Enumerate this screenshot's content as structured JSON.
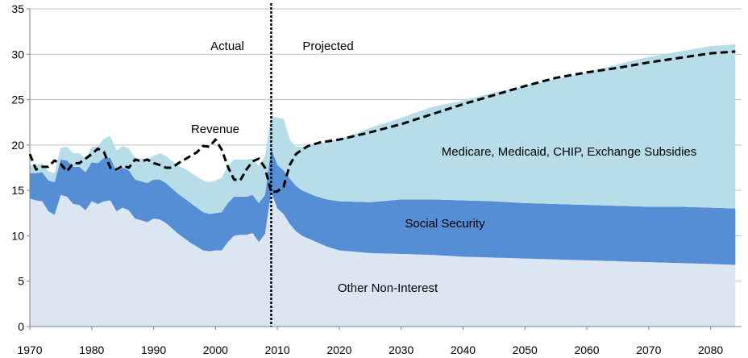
{
  "chart_data": {
    "type": "area",
    "title": "",
    "xlabel": "",
    "ylabel": "",
    "xlim": [
      1970,
      2085
    ],
    "ylim": [
      0,
      35
    ],
    "x_ticks": [
      1970,
      1980,
      1990,
      2000,
      2010,
      2020,
      2030,
      2040,
      2050,
      2060,
      2070,
      2080
    ],
    "y_ticks": [
      0,
      5,
      10,
      15,
      20,
      25,
      30,
      35
    ],
    "grid": "horizontal",
    "stacked": true,
    "divider_x": 2009,
    "annotations": {
      "actual": "Actual",
      "projected": "Projected",
      "revenue": "Revenue",
      "health": "Medicare, Medicaid, CHIP, Exchange Subsidies",
      "social_security": "Social Security",
      "other": "Other Non-Interest"
    },
    "colors": {
      "other": "#dce6f2",
      "social_security": "#558ed5",
      "health": "#b7dde8",
      "revenue": "#000000",
      "grid": "#c0c0c0",
      "divider": "#000000"
    },
    "x": [
      1970,
      1971,
      1972,
      1973,
      1974,
      1975,
      1976,
      1977,
      1978,
      1979,
      1980,
      1981,
      1982,
      1983,
      1984,
      1985,
      1986,
      1987,
      1988,
      1989,
      1990,
      1991,
      1992,
      1993,
      1994,
      1995,
      1996,
      1997,
      1998,
      1999,
      2000,
      2001,
      2002,
      2003,
      2004,
      2005,
      2006,
      2007,
      2008,
      2009,
      2010,
      2011,
      2012,
      2013,
      2014,
      2015,
      2016,
      2017,
      2018,
      2019,
      2020,
      2025,
      2030,
      2035,
      2040,
      2045,
      2050,
      2055,
      2060,
      2065,
      2070,
      2075,
      2080,
      2084
    ],
    "series": [
      {
        "key": "other",
        "values": [
          14.1,
          13.9,
          13.8,
          12.7,
          12.3,
          14.5,
          14.3,
          13.5,
          13.4,
          12.8,
          13.8,
          13.5,
          13.8,
          13.9,
          12.7,
          13.1,
          12.8,
          11.9,
          11.7,
          11.5,
          11.9,
          11.8,
          11.4,
          10.8,
          10.2,
          9.7,
          9.2,
          8.8,
          8.4,
          8.3,
          8.4,
          8.4,
          9.3,
          10.0,
          10.1,
          10.1,
          10.3,
          9.3,
          10.2,
          14.8,
          13.0,
          12.4,
          11.3,
          10.5,
          10.0,
          9.7,
          9.4,
          9.1,
          8.8,
          8.6,
          8.4,
          8.1,
          8.0,
          7.9,
          7.7,
          7.6,
          7.5,
          7.4,
          7.3,
          7.2,
          7.1,
          7.0,
          6.9,
          6.8
        ]
      },
      {
        "key": "social_security",
        "values": [
          2.8,
          3.0,
          3.2,
          3.4,
          3.6,
          3.9,
          4.0,
          4.1,
          4.2,
          4.2,
          4.3,
          4.5,
          4.8,
          4.7,
          4.4,
          4.4,
          4.4,
          4.3,
          4.3,
          4.3,
          4.3,
          4.4,
          4.4,
          4.4,
          4.4,
          4.4,
          4.4,
          4.3,
          4.2,
          4.1,
          4.1,
          4.2,
          4.3,
          4.3,
          4.2,
          4.2,
          4.2,
          4.3,
          4.3,
          4.8,
          4.8,
          4.8,
          5.0,
          5.0,
          5.0,
          5.0,
          5.0,
          5.1,
          5.2,
          5.3,
          5.4,
          5.6,
          6.0,
          6.1,
          6.2,
          6.2,
          6.1,
          6.1,
          6.1,
          6.1,
          6.1,
          6.2,
          6.2,
          6.2
        ]
      },
      {
        "key": "health",
        "values": [
          0.9,
          0.9,
          1.0,
          1.0,
          1.0,
          1.3,
          1.5,
          1.5,
          1.5,
          1.5,
          1.7,
          1.9,
          2.1,
          2.4,
          2.3,
          2.4,
          2.4,
          2.4,
          2.5,
          2.6,
          2.6,
          2.9,
          3.0,
          3.0,
          3.1,
          3.3,
          3.4,
          3.4,
          3.5,
          3.5,
          3.6,
          3.8,
          4.1,
          4.1,
          4.1,
          4.1,
          4.0,
          4.1,
          4.3,
          3.6,
          5.2,
          5.7,
          4.3,
          4.3,
          4.8,
          5.3,
          5.8,
          6.0,
          6.4,
          6.6,
          6.8,
          8.2,
          9.0,
          10.2,
          11.0,
          12.0,
          12.9,
          13.8,
          14.6,
          15.6,
          16.5,
          17.1,
          17.8,
          18.1
        ]
      }
    ],
    "revenue": {
      "name": "Revenue",
      "x": [
        1970,
        1971,
        1972,
        1973,
        1974,
        1975,
        1976,
        1977,
        1978,
        1979,
        1980,
        1981,
        1982,
        1983,
        1984,
        1985,
        1986,
        1987,
        1988,
        1989,
        1990,
        1991,
        1992,
        1993,
        1994,
        1995,
        1996,
        1997,
        1998,
        1999,
        2000,
        2001,
        2002,
        2003,
        2004,
        2005,
        2006,
        2007,
        2008,
        2009,
        2010,
        2011,
        2012,
        2013,
        2014,
        2015,
        2016,
        2017,
        2018,
        2019,
        2020,
        2025,
        2030,
        2035,
        2040,
        2045,
        2050,
        2055,
        2060,
        2065,
        2070,
        2075,
        2080,
        2084
      ],
      "values": [
        19.0,
        17.3,
        17.6,
        17.6,
        18.3,
        17.9,
        17.1,
        18.0,
        18.0,
        18.5,
        19.0,
        19.6,
        19.2,
        17.5,
        17.3,
        17.7,
        17.5,
        18.4,
        18.2,
        18.4,
        18.0,
        17.8,
        17.5,
        17.5,
        18.0,
        18.4,
        18.8,
        19.2,
        19.9,
        19.8,
        20.6,
        19.5,
        17.6,
        16.2,
        16.1,
        17.3,
        18.2,
        18.5,
        17.5,
        14.8,
        14.9,
        15.4,
        17.8,
        19.0,
        19.5,
        19.9,
        20.1,
        20.3,
        20.4,
        20.5,
        20.6,
        21.4,
        22.3,
        23.4,
        24.5,
        25.5,
        26.5,
        27.4,
        28.0,
        28.5,
        29.1,
        29.6,
        30.1,
        30.3
      ]
    }
  }
}
